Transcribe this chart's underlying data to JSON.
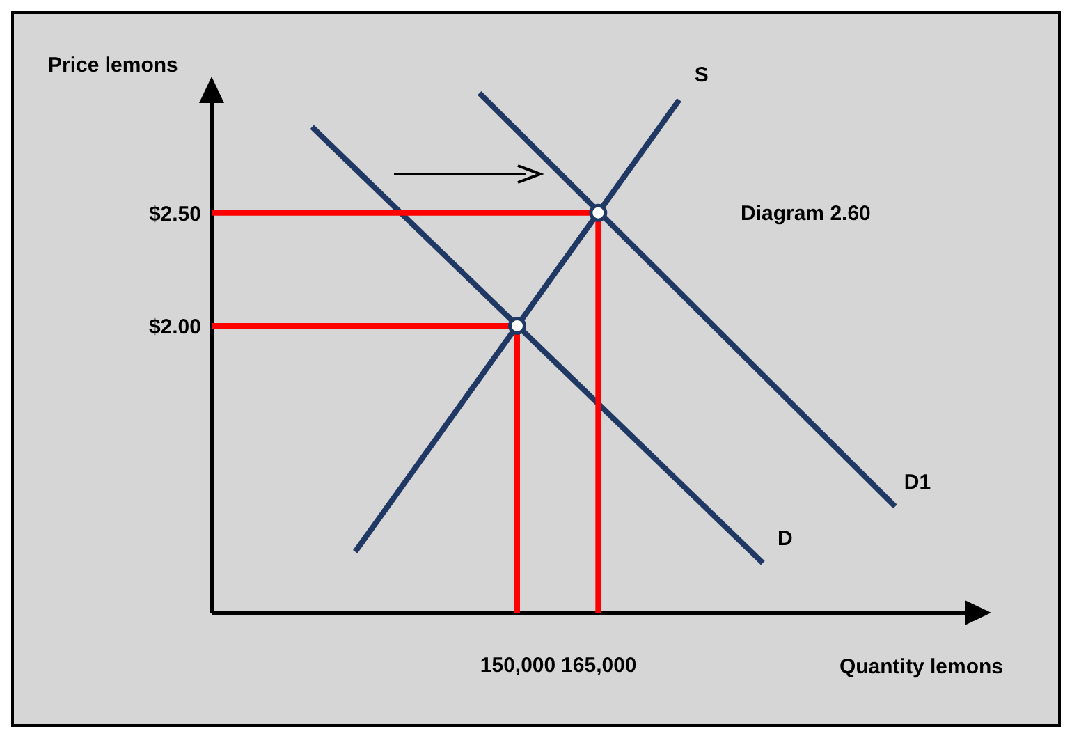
{
  "chart_data": {
    "type": "line",
    "xlabel": "Quantity lemons",
    "ylabel": "Price lemons",
    "annotations": [
      "Diagram 2.60"
    ],
    "xlim": [
      93400,
      236000
    ],
    "ylim": [
      0.73,
      3.06
    ],
    "xticks": [
      {
        "value": 150000,
        "label": "150,000"
      },
      {
        "value": 165000,
        "label": "165,000"
      }
    ],
    "yticks": [
      {
        "value": 2,
        "label": "$2.00"
      },
      {
        "value": 2.5,
        "label": "$2.50"
      }
    ],
    "grid": false,
    "marker": "none",
    "series": [
      {
        "name": "S",
        "color": "#1f3864",
        "x": [
          120000,
          180000
        ],
        "values": [
          1.0,
          3.0
        ]
      },
      {
        "name": "D",
        "color": "#1f3864",
        "x": [
          112000,
          195500
        ],
        "values": [
          2.88,
          0.95
        ]
      },
      {
        "name": "D1",
        "color": "#1f3864",
        "x": [
          143000,
          220000
        ],
        "values": [
          3.03,
          1.2
        ]
      },
      {
        "color": "#ff0000",
        "x": [
          93400,
          150000,
          150000
        ],
        "values": [
          2,
          2,
          0.73
        ]
      },
      {
        "color": "#ff0000",
        "x": [
          93400,
          165000,
          165000
        ],
        "values": [
          2.5,
          2.5,
          0.73
        ]
      },
      {
        "type": "scatter",
        "marker": "circle",
        "color": "#ffffff",
        "x": [
          150000,
          165000
        ],
        "values": [
          2,
          2.5
        ]
      }
    ]
  }
}
